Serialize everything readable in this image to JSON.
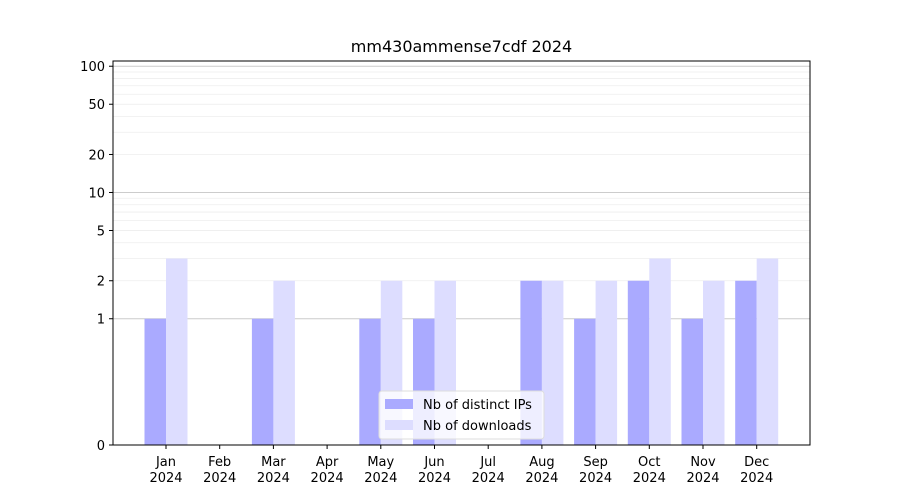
{
  "chart_data": {
    "type": "bar",
    "title": "mm430ammense7cdf 2024",
    "xlabel": "",
    "ylabel": "",
    "y_scale": "symlog",
    "ylim": [
      0,
      110
    ],
    "y_ticks": [
      0,
      1,
      2,
      5,
      10,
      20,
      50,
      100
    ],
    "y_tick_labels": [
      "0",
      "1",
      "2",
      "5",
      "10",
      "20",
      "50",
      "100"
    ],
    "categories": [
      "Jan\n2024",
      "Feb\n2024",
      "Mar\n2024",
      "Apr\n2024",
      "May\n2024",
      "Jun\n2024",
      "Jul\n2024",
      "Aug\n2024",
      "Sep\n2024",
      "Oct\n2024",
      "Nov\n2024",
      "Dec\n2024"
    ],
    "category_lines": [
      [
        "Jan",
        "2024"
      ],
      [
        "Feb",
        "2024"
      ],
      [
        "Mar",
        "2024"
      ],
      [
        "Apr",
        "2024"
      ],
      [
        "May",
        "2024"
      ],
      [
        "Jun",
        "2024"
      ],
      [
        "Jul",
        "2024"
      ],
      [
        "Aug",
        "2024"
      ],
      [
        "Sep",
        "2024"
      ],
      [
        "Oct",
        "2024"
      ],
      [
        "Nov",
        "2024"
      ],
      [
        "Dec",
        "2024"
      ]
    ],
    "series": [
      {
        "name": "Nb of distinct IPs",
        "color": "#aaaaff",
        "values": [
          1,
          0,
          1,
          0,
          1,
          1,
          0,
          2,
          1,
          2,
          1,
          2
        ]
      },
      {
        "name": "Nb of downloads",
        "color": "#ddddff",
        "values": [
          3,
          0,
          2,
          0,
          2,
          2,
          0,
          2,
          2,
          3,
          2,
          3
        ]
      }
    ],
    "grid": true,
    "legend_position": "lower-center"
  }
}
